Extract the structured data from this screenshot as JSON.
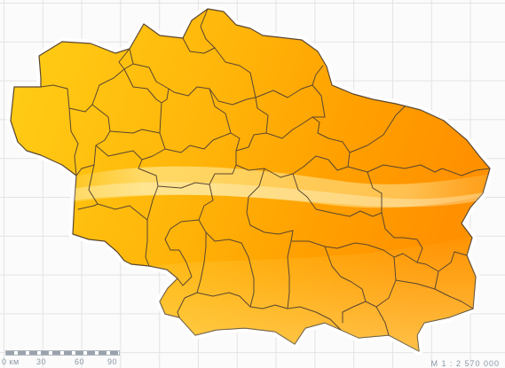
{
  "map": {
    "fill_light": "#ffd633",
    "fill_dark": "#ff9a00",
    "border_color": "#5a4630",
    "outline_color": "#ffffff",
    "grid_color": "#e3e3e3"
  },
  "scale": {
    "labels": [
      "0 км",
      "30",
      "60",
      "90"
    ],
    "ratio": "М 1 : 2 570 000"
  }
}
